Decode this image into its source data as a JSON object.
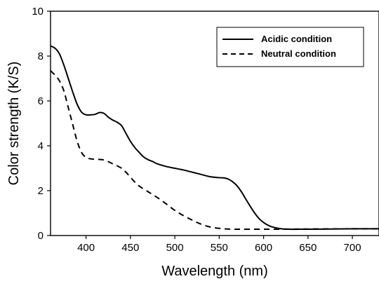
{
  "chart_data": {
    "type": "line",
    "xlabel": "Wavelength (nm)",
    "ylabel": "Color strength (K/S)",
    "xlim": [
      360,
      730
    ],
    "ylim": [
      0,
      10
    ],
    "x_ticks": [
      400,
      450,
      500,
      550,
      600,
      650,
      700
    ],
    "y_ticks": [
      0,
      2,
      4,
      6,
      8,
      10
    ],
    "grid": false,
    "legend_position": "top-right",
    "series": [
      {
        "name": "Acidic condition",
        "line_style": "solid",
        "color": "#000000",
        "x": [
          360,
          365,
          370,
          375,
          380,
          385,
          390,
          395,
          400,
          405,
          410,
          415,
          420,
          425,
          430,
          435,
          440,
          445,
          450,
          455,
          460,
          465,
          470,
          475,
          480,
          490,
          500,
          510,
          520,
          530,
          540,
          550,
          555,
          560,
          565,
          570,
          575,
          580,
          585,
          590,
          595,
          600,
          605,
          610,
          620,
          630,
          640,
          650,
          675,
          700,
          730
        ],
        "values": [
          8.45,
          8.35,
          8.1,
          7.6,
          7.0,
          6.4,
          5.85,
          5.5,
          5.38,
          5.38,
          5.4,
          5.48,
          5.45,
          5.28,
          5.15,
          5.05,
          4.9,
          4.55,
          4.2,
          3.92,
          3.7,
          3.5,
          3.38,
          3.3,
          3.2,
          3.08,
          3.0,
          2.92,
          2.82,
          2.72,
          2.62,
          2.58,
          2.57,
          2.52,
          2.4,
          2.22,
          1.95,
          1.62,
          1.3,
          1.0,
          0.75,
          0.58,
          0.46,
          0.38,
          0.3,
          0.28,
          0.28,
          0.28,
          0.29,
          0.3,
          0.3
        ]
      },
      {
        "name": "Neutral condition",
        "line_style": "dashed",
        "color": "#000000",
        "x": [
          360,
          365,
          370,
          375,
          380,
          385,
          390,
          395,
          400,
          405,
          410,
          420,
          430,
          440,
          445,
          450,
          455,
          460,
          470,
          480,
          490,
          500,
          510,
          520,
          530,
          540,
          550,
          560,
          570,
          580,
          600,
          650,
          700,
          730
        ],
        "values": [
          7.35,
          7.15,
          6.9,
          6.45,
          5.7,
          4.95,
          4.2,
          3.7,
          3.48,
          3.42,
          3.4,
          3.37,
          3.2,
          3.0,
          2.82,
          2.6,
          2.38,
          2.2,
          1.95,
          1.7,
          1.42,
          1.12,
          0.88,
          0.68,
          0.5,
          0.38,
          0.32,
          0.29,
          0.28,
          0.28,
          0.28,
          0.29,
          0.3,
          0.3
        ]
      }
    ]
  }
}
